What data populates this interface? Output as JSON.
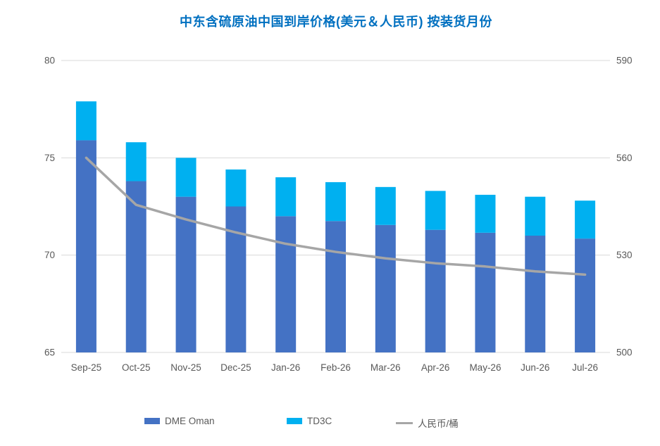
{
  "chart": {
    "title": "中东含硫原油中国到岸价格(美元＆人民币) 按装货月份",
    "title_color": "#0070C0"
  },
  "chart_data": {
    "type": "bar",
    "subtype": "stacked-bars-with-secondary-axis-line",
    "title": "中东含硫原油中国到岸价格(美元＆人民币) 按装货月份",
    "categories": [
      "Sep-25",
      "Oct-25",
      "Nov-25",
      "Dec-25",
      "Jan-26",
      "Feb-26",
      "Mar-26",
      "Apr-26",
      "May-26",
      "Jun-26",
      "Jul-26"
    ],
    "series": [
      {
        "name": "DME Oman",
        "type": "bar",
        "stacked": true,
        "axis": "left",
        "color": "#4472C4",
        "values": [
          75.9,
          73.8,
          73.0,
          72.5,
          72.0,
          71.75,
          71.55,
          71.3,
          71.15,
          71.0,
          70.85
        ]
      },
      {
        "name": "TD3C",
        "type": "bar",
        "stacked": true,
        "axis": "left",
        "color": "#00B0F0",
        "values": [
          2.0,
          2.0,
          2.0,
          1.9,
          2.0,
          2.0,
          1.95,
          2.0,
          1.95,
          2.0,
          1.95
        ]
      },
      {
        "name": "人民币/桶",
        "type": "line",
        "axis": "right",
        "color": "#A6A6A6",
        "values": [
          560,
          545.5,
          541,
          537,
          533.5,
          531,
          529,
          527.5,
          526.5,
          525,
          524
        ]
      }
    ],
    "left_axis": {
      "min": 65,
      "max": 80,
      "ticks": [
        80,
        75,
        70,
        65
      ]
    },
    "right_axis": {
      "min": 500,
      "max": 590,
      "ticks": [
        590,
        560,
        530,
        500
      ]
    },
    "grid": true,
    "legend_position": "bottom",
    "xlabel": "",
    "ylabel": ""
  },
  "legend": {
    "items": [
      {
        "label": "DME Oman",
        "color": "#4472C4",
        "marker": "rect"
      },
      {
        "label": "TD3C",
        "color": "#00B0F0",
        "marker": "rect"
      },
      {
        "label": "人民币/桶",
        "color": "#A6A6A6",
        "marker": "line"
      }
    ]
  },
  "colors": {
    "gridline": "#D9D9D9",
    "axis_text": "#595959"
  }
}
